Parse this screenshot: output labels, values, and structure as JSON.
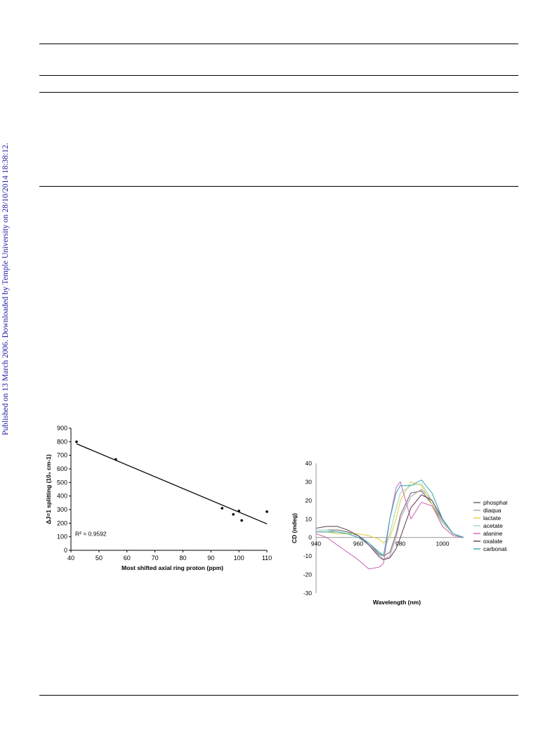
{
  "side_note": "Published on 13 March 2006. Downloaded by Temple University on 28/10/2014 18:38:12.",
  "chart_data": [
    {
      "type": "scatter",
      "xlabel": "Most shifted axial ring proton (ppm)",
      "ylabel": "ΔJ=1 splitting (10₀ cm-1)",
      "xlim": [
        40,
        110
      ],
      "ylim": [
        0,
        900
      ],
      "x_ticks": [
        "40",
        "50",
        "60",
        "70",
        "80",
        "90",
        "100",
        "110"
      ],
      "y_ticks": [
        "0",
        "100",
        "200",
        "300",
        "400",
        "500",
        "600",
        "700",
        "800",
        "900"
      ],
      "points": [
        {
          "x": 42,
          "y": 800
        },
        {
          "x": 56,
          "y": 670
        },
        {
          "x": 94,
          "y": 310
        },
        {
          "x": 98,
          "y": 265
        },
        {
          "x": 100,
          "y": 290
        },
        {
          "x": 101,
          "y": 220
        },
        {
          "x": 110,
          "y": 285
        }
      ],
      "trendline": {
        "x": [
          42,
          110
        ],
        "y": [
          785,
          195
        ]
      },
      "annotation": "R² = 0.9592",
      "grid": false
    },
    {
      "type": "line",
      "xlabel": "Wavelength (nm)",
      "ylabel": "CD (mdeg)",
      "xlim": [
        940,
        1010
      ],
      "ylim": [
        -30,
        40
      ],
      "x_ticks": [
        "940",
        "960",
        "980",
        "1000"
      ],
      "y_ticks": [
        "40",
        "30",
        "20",
        "10",
        "0",
        "-10",
        "-20",
        "-30"
      ],
      "legend_position": "right",
      "grid": false,
      "x": [
        940,
        945,
        950,
        955,
        960,
        965,
        970,
        972,
        975,
        978,
        980,
        985,
        990,
        995,
        1000,
        1005,
        1010
      ],
      "series": [
        {
          "name": "phosphate",
          "color": "#6b6b6b",
          "values": [
            4,
            4,
            4,
            3,
            1,
            -3,
            -9,
            -10,
            -8,
            2,
            12,
            24,
            25,
            18,
            8,
            2,
            0
          ]
        },
        {
          "name": "diaqua",
          "color": "#b7a6b8",
          "values": [
            3,
            3,
            3,
            2,
            0,
            -4,
            -11,
            -12,
            -10,
            0,
            10,
            22,
            26,
            20,
            9,
            2,
            0
          ]
        },
        {
          "name": "lactate",
          "color": "#e0d450",
          "values": [
            3,
            3,
            2,
            2,
            2,
            1,
            -1,
            -3,
            0,
            10,
            20,
            30,
            28,
            18,
            6,
            1,
            0
          ]
        },
        {
          "name": "acetate",
          "color": "#a8d8c0",
          "values": [
            4,
            4,
            3,
            2,
            0,
            -3,
            -8,
            -9,
            2,
            16,
            24,
            28,
            29,
            20,
            8,
            2,
            0
          ]
        },
        {
          "name": "alanine",
          "color": "#d070b8",
          "values": [
            2,
            0,
            -4,
            -8,
            -12,
            -17,
            -16,
            -14,
            10,
            27,
            30,
            10,
            19,
            17,
            6,
            1,
            0
          ]
        },
        {
          "name": "oxalate",
          "color": "#6a4a60",
          "values": [
            5,
            6,
            6,
            4,
            1,
            -4,
            -10,
            -12,
            -11,
            -6,
            0,
            16,
            23,
            20,
            10,
            2,
            0
          ]
        },
        {
          "name": "carbonate",
          "color": "#40a8b8",
          "values": [
            3,
            3,
            3,
            2,
            0,
            -3,
            -8,
            -10,
            10,
            24,
            28,
            28,
            31,
            24,
            10,
            2,
            0
          ]
        }
      ]
    }
  ]
}
